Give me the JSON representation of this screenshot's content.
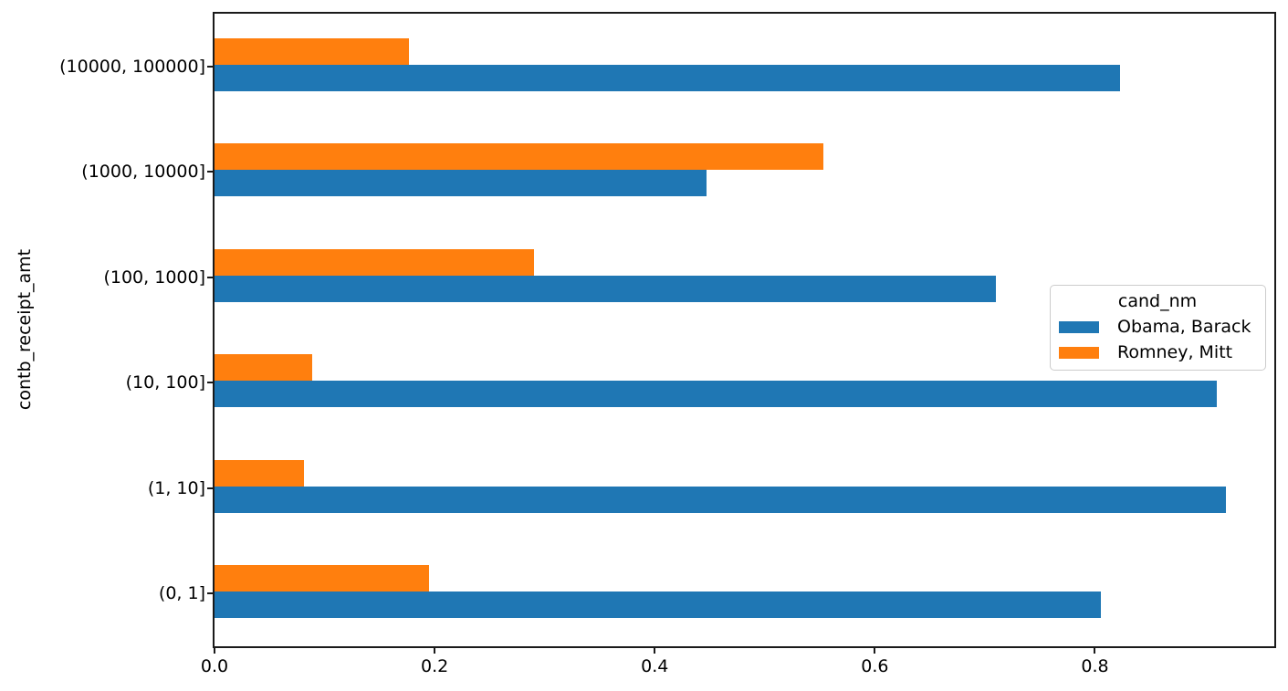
{
  "chart_data": {
    "type": "bar",
    "orientation": "horizontal",
    "title": "",
    "xlabel": "",
    "ylabel": "contb_receipt_amt",
    "legend_title": "cand_nm",
    "legend_position": "center right",
    "grid": false,
    "xlim": [
      0,
      0.963
    ],
    "x_ticks": [
      {
        "value": 0.0,
        "label": "0.0"
      },
      {
        "value": 0.2,
        "label": "0.2"
      },
      {
        "value": 0.4,
        "label": "0.4"
      },
      {
        "value": 0.6,
        "label": "0.6"
      },
      {
        "value": 0.8,
        "label": "0.8"
      }
    ],
    "categories_bottom_to_top": [
      "(0, 1]",
      "(1, 10]",
      "(10, 100]",
      "(100, 1000]",
      "(1000, 10000]",
      "(10000, 100000]"
    ],
    "series": [
      {
        "name": "Obama, Barack",
        "color": "#1f77b4",
        "values": [
          0.805,
          0.919,
          0.911,
          0.71,
          0.447,
          0.823
        ]
      },
      {
        "name": "Romney, Mitt",
        "color": "#ff7f0e",
        "values": [
          0.195,
          0.081,
          0.089,
          0.29,
          0.553,
          0.177
        ]
      }
    ]
  }
}
